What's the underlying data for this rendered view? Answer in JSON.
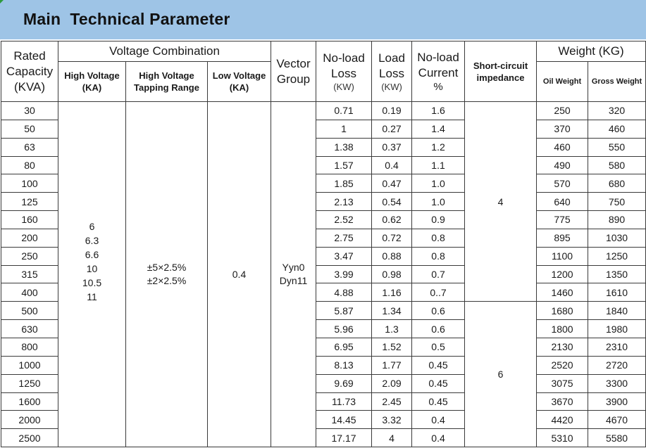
{
  "title": "Main  Technical Parameter",
  "header": {
    "rated_capacity": [
      "Rated",
      "Capacity",
      "(KVA)"
    ],
    "voltage_combination": "Voltage Combination",
    "high_voltage": [
      "High Voltage",
      "(KA)"
    ],
    "high_voltage_tapping": [
      "High  Voltage",
      "Tapping Range"
    ],
    "low_voltage": [
      "Low Voltage",
      "(KA)"
    ],
    "vector_group": [
      "Vector",
      "Group"
    ],
    "no_load_loss": [
      "No-load",
      "Loss",
      "(KW)"
    ],
    "load_loss": [
      "Load",
      "Loss",
      "(KW)"
    ],
    "no_load_current": [
      "No-load",
      "Current",
      "%"
    ],
    "short_circuit": [
      "Short-circuit",
      "impedance"
    ],
    "weight": "Weight (KG)",
    "oil_weight": "Oil Weight",
    "gross_weight": "Gross Weight"
  },
  "merged": {
    "high_voltage_values": [
      "6",
      "6.3",
      "6.6",
      "10",
      "10.5",
      "11"
    ],
    "tapping_values": [
      "±5×2.5%",
      "±2×2.5%"
    ],
    "low_voltage": "0.4",
    "vector_values": [
      "Yyn0",
      "Dyn11"
    ],
    "impedance_group_1": "4",
    "impedance_group_2": "6"
  },
  "rows": [
    {
      "capacity": "30",
      "no_load_loss": "0.71",
      "load_loss": "0.19",
      "no_load_current": "1.6",
      "oil_weight": "250",
      "gross_weight": "320"
    },
    {
      "capacity": "50",
      "no_load_loss": "1",
      "load_loss": "0.27",
      "no_load_current": "1.4",
      "oil_weight": "370",
      "gross_weight": "460"
    },
    {
      "capacity": "63",
      "no_load_loss": "1.38",
      "load_loss": "0.37",
      "no_load_current": "1.2",
      "oil_weight": "460",
      "gross_weight": "550"
    },
    {
      "capacity": "80",
      "no_load_loss": "1.57",
      "load_loss": "0.4",
      "no_load_current": "1.1",
      "oil_weight": "490",
      "gross_weight": "580"
    },
    {
      "capacity": "100",
      "no_load_loss": "1.85",
      "load_loss": "0.47",
      "no_load_current": "1.0",
      "oil_weight": "570",
      "gross_weight": "680"
    },
    {
      "capacity": "125",
      "no_load_loss": "2.13",
      "load_loss": "0.54",
      "no_load_current": "1.0",
      "oil_weight": "640",
      "gross_weight": "750"
    },
    {
      "capacity": "160",
      "no_load_loss": "2.52",
      "load_loss": "0.62",
      "no_load_current": "0.9",
      "oil_weight": "775",
      "gross_weight": "890"
    },
    {
      "capacity": "200",
      "no_load_loss": "2.75",
      "load_loss": "0.72",
      "no_load_current": "0.8",
      "oil_weight": "895",
      "gross_weight": "1030"
    },
    {
      "capacity": "250",
      "no_load_loss": "3.47",
      "load_loss": "0.88",
      "no_load_current": "0.8",
      "oil_weight": "1100",
      "gross_weight": "1250"
    },
    {
      "capacity": "315",
      "no_load_loss": "3.99",
      "load_loss": "0.98",
      "no_load_current": "0.7",
      "oil_weight": "1200",
      "gross_weight": "1350"
    },
    {
      "capacity": "400",
      "no_load_loss": "4.88",
      "load_loss": "1.16",
      "no_load_current": "0..7",
      "oil_weight": "1460",
      "gross_weight": "1610"
    },
    {
      "capacity": "500",
      "no_load_loss": "5.87",
      "load_loss": "1.34",
      "no_load_current": "0.6",
      "oil_weight": "1680",
      "gross_weight": "1840"
    },
    {
      "capacity": "630",
      "no_load_loss": "5.96",
      "load_loss": "1.3",
      "no_load_current": "0.6",
      "oil_weight": "1800",
      "gross_weight": "1980"
    },
    {
      "capacity": "800",
      "no_load_loss": "6.95",
      "load_loss": "1.52",
      "no_load_current": "0.5",
      "oil_weight": "2130",
      "gross_weight": "2310"
    },
    {
      "capacity": "1000",
      "no_load_loss": "8.13",
      "load_loss": "1.77",
      "no_load_current": "0.45",
      "oil_weight": "2520",
      "gross_weight": "2720"
    },
    {
      "capacity": "1250",
      "no_load_loss": "9.69",
      "load_loss": "2.09",
      "no_load_current": "0.45",
      "oil_weight": "3075",
      "gross_weight": "3300"
    },
    {
      "capacity": "1600",
      "no_load_loss": "11.73",
      "load_loss": "2.45",
      "no_load_current": "0.45",
      "oil_weight": "3670",
      "gross_weight": "3900"
    },
    {
      "capacity": "2000",
      "no_load_loss": "14.45",
      "load_loss": "3.32",
      "no_load_current": "0.4",
      "oil_weight": "4420",
      "gross_weight": "4670"
    },
    {
      "capacity": "2500",
      "no_load_loss": "17.17",
      "load_loss": "4",
      "no_load_current": "0.4",
      "oil_weight": "5310",
      "gross_weight": "5580"
    }
  ],
  "colors": {
    "banner": "#9ec4e6",
    "corner_mark": "#2e9a3c",
    "grid": "#3a3a3a"
  }
}
